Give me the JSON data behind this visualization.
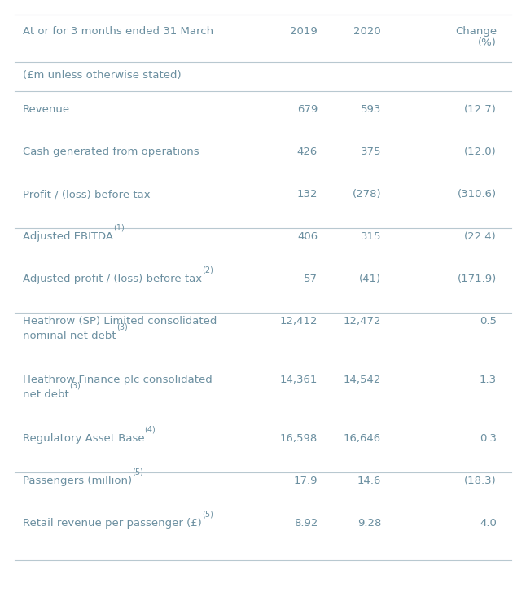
{
  "header_label": "At or for 3 months ended 31 March",
  "header_2019": "2019",
  "header_2020": "2020",
  "header_change1": "Change",
  "header_change2": "(%)",
  "subtitle": "(£m unless otherwise stated)",
  "rows": [
    {
      "label": "Revenue",
      "superscript": "",
      "val2019": "679",
      "val2020": "593",
      "change": "(12.7)",
      "multiline": false,
      "group_end": false
    },
    {
      "label": "Cash generated from operations",
      "superscript": "",
      "val2019": "426",
      "val2020": "375",
      "change": "(12.0)",
      "multiline": false,
      "group_end": false
    },
    {
      "label": "Profit / (loss) before tax",
      "superscript": "",
      "val2019": "132",
      "val2020": "(278)",
      "change": "(310.6)",
      "multiline": false,
      "group_end": true
    },
    {
      "label": "Adjusted EBITDA",
      "superscript": "(1)",
      "val2019": "406",
      "val2020": "315",
      "change": "(22.4)",
      "multiline": false,
      "group_end": false
    },
    {
      "label": "Adjusted profit / (loss) before tax",
      "superscript": "(2)",
      "val2019": "57",
      "val2020": "(41)",
      "change": "(171.9)",
      "multiline": false,
      "group_end": true
    },
    {
      "label_line1": "Heathrow (SP) Limited consolidated",
      "label_line2": "nominal net debt",
      "superscript": "(3)",
      "val2019": "12,412",
      "val2020": "12,472",
      "change": "0.5",
      "multiline": true,
      "group_end": false
    },
    {
      "label_line1": "Heathrow Finance plc consolidated",
      "label_line2": "net debt",
      "superscript": "(3)",
      "val2019": "14,361",
      "val2020": "14,542",
      "change": "1.3",
      "multiline": true,
      "group_end": false
    },
    {
      "label": "Regulatory Asset Base",
      "superscript": "(4)",
      "val2019": "16,598",
      "val2020": "16,646",
      "change": "0.3",
      "multiline": false,
      "group_end": true
    },
    {
      "label": "Passengers (million)",
      "superscript": "(5)",
      "val2019": "17.9",
      "val2020": "14.6",
      "change": "(18.3)",
      "multiline": false,
      "group_end": false
    },
    {
      "label": "Retail revenue per passenger (£)",
      "superscript": "(5)",
      "val2019": "8.92",
      "val2020": "9.28",
      "change": "4.0",
      "multiline": false,
      "group_end": false
    }
  ],
  "text_color": "#6b8fa0",
  "line_color": "#b8c8d0",
  "bg_color": "#ffffff",
  "font_size": 9.5,
  "sup_font_size": 7.0
}
